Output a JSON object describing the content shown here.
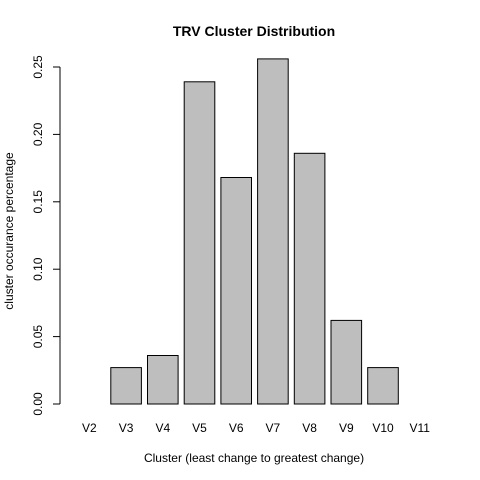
{
  "chart_data": {
    "type": "bar",
    "title": "TRV Cluster Distribution",
    "xlabel": "Cluster (least change to greatest change)",
    "ylabel": "cluster occurance percentage",
    "categories": [
      "V2",
      "V3",
      "V4",
      "V5",
      "V6",
      "V7",
      "V8",
      "V9",
      "V10",
      "V11"
    ],
    "values": [
      0.0,
      0.027,
      0.036,
      0.239,
      0.168,
      0.256,
      0.186,
      0.062,
      0.027,
      0.0
    ],
    "yticks": [
      "0.00",
      "0.05",
      "0.10",
      "0.15",
      "0.20",
      "0.25"
    ],
    "ytick_values": [
      0,
      0.05,
      0.1,
      0.15,
      0.2,
      0.25
    ],
    "ylim": [
      0,
      0.25
    ],
    "grid": false,
    "bar_color": "#bebebe"
  }
}
